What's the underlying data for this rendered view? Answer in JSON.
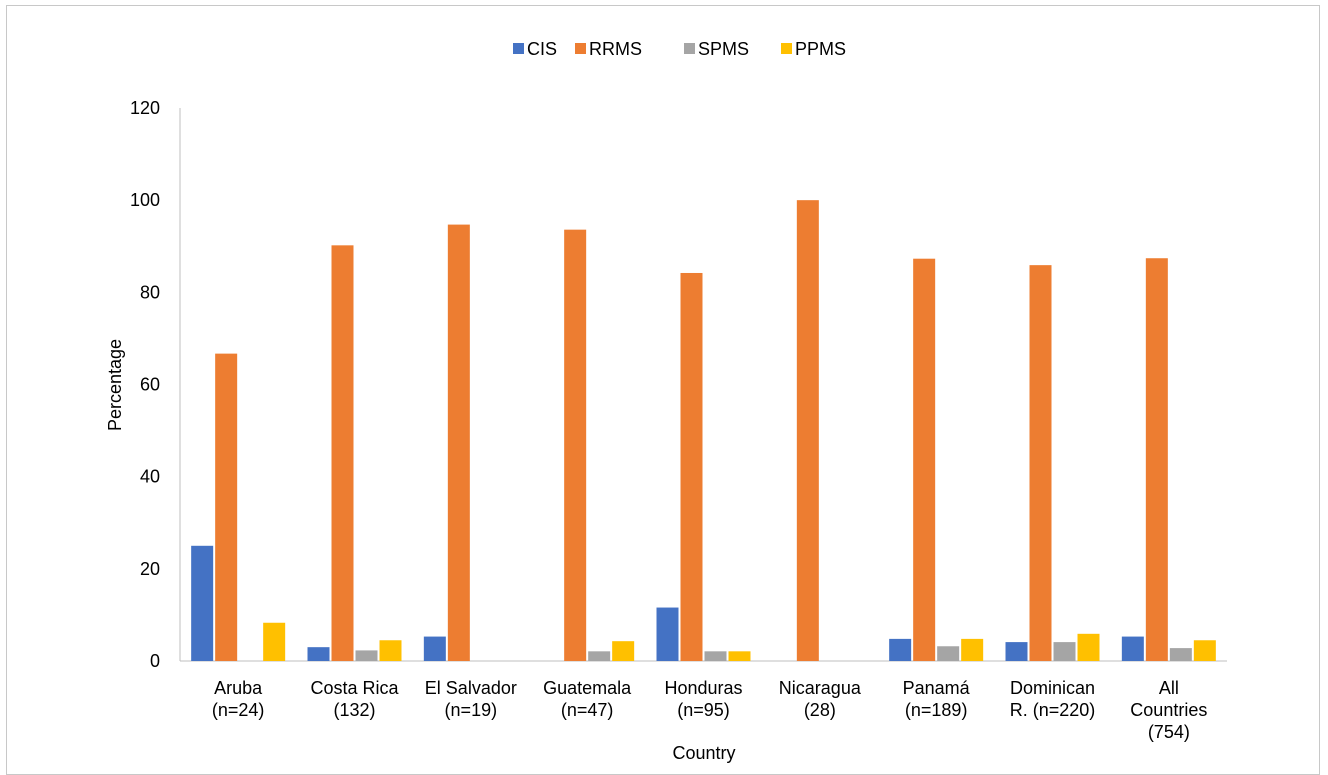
{
  "chart_data": {
    "type": "bar",
    "title": "",
    "xlabel": "Country",
    "ylabel": "Percentage",
    "ylim": [
      0,
      120
    ],
    "yticks": [
      0,
      20,
      40,
      60,
      80,
      100,
      120
    ],
    "grid": false,
    "legend_position": "top-center",
    "categories": [
      [
        "Aruba",
        "(n=24)"
      ],
      [
        "Costa Rica",
        "(132)"
      ],
      [
        "El Salvador",
        "(n=19)"
      ],
      [
        "Guatemala",
        "(n=47)"
      ],
      [
        "Honduras",
        "(n=95)"
      ],
      [
        "Nicaragua",
        "(28)"
      ],
      [
        "Panamá",
        "(n=189)"
      ],
      [
        "Dominican",
        "R. (n=220)"
      ],
      [
        "All",
        "Countries",
        "(754)"
      ]
    ],
    "series": [
      {
        "name": "CIS",
        "color": "#4472C4",
        "values": [
          25.0,
          3.0,
          5.3,
          0,
          11.6,
          0,
          4.8,
          4.1,
          5.3
        ]
      },
      {
        "name": "RRMS",
        "color": "#ED7D31",
        "values": [
          66.7,
          90.2,
          94.7,
          93.6,
          84.2,
          100.0,
          87.3,
          85.9,
          87.4
        ]
      },
      {
        "name": "SPMS",
        "color": "#A5A5A5",
        "values": [
          0,
          2.3,
          0,
          2.1,
          2.1,
          0,
          3.2,
          4.1,
          2.8
        ]
      },
      {
        "name": "PPMS",
        "color": "#FFC000",
        "values": [
          8.3,
          4.5,
          0,
          4.3,
          2.1,
          0,
          4.8,
          5.9,
          4.5
        ]
      }
    ]
  }
}
